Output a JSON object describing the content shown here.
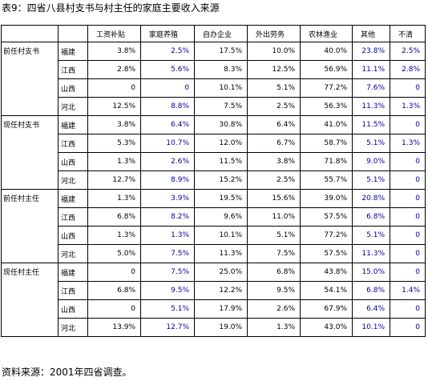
{
  "title": "表9：四省八县村支书与村主任的家庭主要收入来源",
  "source": "资料来源：2001年四省调查。",
  "columns": [
    "工资补贴",
    "家庭养殖",
    "自办企业",
    "外出劳务",
    "农林渔业",
    "其他",
    "不清"
  ],
  "groups": [
    {
      "label": "前任村支书",
      "rows": [
        {
          "province": "福建",
          "values": [
            "3.8%",
            "2.5%",
            "17.5%",
            "10.0%",
            "40.0%",
            "23.8%",
            "2.5%"
          ]
        },
        {
          "province": "江西",
          "values": [
            "2.8%",
            "5.6%",
            "8.3%",
            "12.5%",
            "56.9%",
            "11.1%",
            "2.8%"
          ]
        },
        {
          "province": "山西",
          "values": [
            "0",
            "0",
            "10.1%",
            "5.1%",
            "77.2%",
            "7.6%",
            "0"
          ]
        },
        {
          "province": "河北",
          "values": [
            "12.5%",
            "8.8%",
            "7.5%",
            "2.5%",
            "56.3%",
            "11.3%",
            "1.3%"
          ]
        }
      ]
    },
    {
      "label": "现任村支书",
      "rows": [
        {
          "province": "福建",
          "values": [
            "3.8%",
            "6.4%",
            "30.8%",
            "6.4%",
            "41.0%",
            "11.5%",
            "0"
          ]
        },
        {
          "province": "江西",
          "values": [
            "5.3%",
            "10.7%",
            "12.0%",
            "6.7%",
            "58.7%",
            "5.1%",
            "1.3%"
          ]
        },
        {
          "province": "山西",
          "values": [
            "1.3%",
            "2.6%",
            "11.5%",
            "3.8%",
            "71.8%",
            "9.0%",
            "0"
          ]
        },
        {
          "province": "河北",
          "values": [
            "12.7%",
            "8.9%",
            "15.2%",
            "2.5%",
            "55.7%",
            "5.1%",
            "0"
          ]
        }
      ]
    },
    {
      "label": "前任村主任",
      "rows": [
        {
          "province": "福建",
          "values": [
            "1.3%",
            "3.9%",
            "19.5%",
            "15.6%",
            "39.0%",
            "20.8%",
            "0"
          ]
        },
        {
          "province": "江西",
          "values": [
            "6.8%",
            "8.2%",
            "9.6%",
            "11.0%",
            "57.5%",
            "6.8%",
            "0"
          ]
        },
        {
          "province": "山西",
          "values": [
            "1.3%",
            "1.3%",
            "10.1%",
            "5.1%",
            "77.2%",
            "5.1%",
            "0"
          ]
        },
        {
          "province": "河北",
          "values": [
            "5.0%",
            "7.5%",
            "11.3%",
            "7.5%",
            "57.5%",
            "11.3%",
            "0"
          ]
        }
      ]
    },
    {
      "label": "现任村主任",
      "rows": [
        {
          "province": "福建",
          "values": [
            "0",
            "7.5%",
            "25.0%",
            "6.8%",
            "43.8%",
            "15.0%",
            "0"
          ]
        },
        {
          "province": "江西",
          "values": [
            "6.8%",
            "9.5%",
            "12.2%",
            "9.5%",
            "54.1%",
            "6.8%",
            "1.4%"
          ]
        },
        {
          "province": "山西",
          "values": [
            "0",
            "5.1%",
            "17.9%",
            "2.6%",
            "67.9%",
            "6.4%",
            "0"
          ]
        },
        {
          "province": "河北",
          "values": [
            "13.9%",
            "12.7%",
            "19.0%",
            "1.3%",
            "43.0%",
            "10.1%",
            "0"
          ]
        }
      ]
    }
  ]
}
